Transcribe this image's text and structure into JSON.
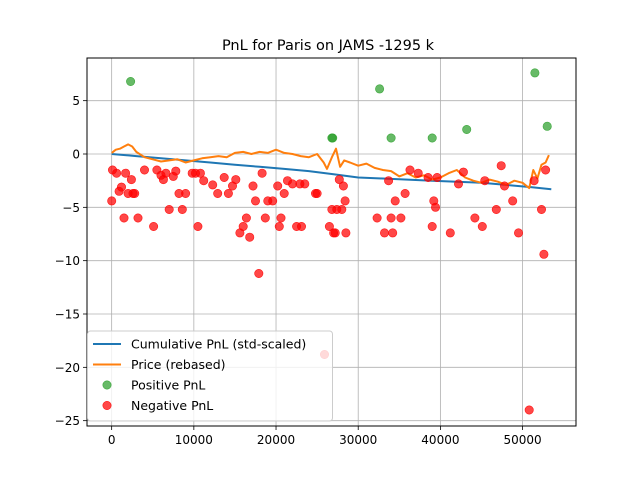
{
  "chart_data": {
    "type": "line+scatter",
    "title": "PnL for Paris on JAMS -1295 k",
    "xlabel": "",
    "ylabel": "",
    "xlim": [
      -3000,
      56500
    ],
    "ylim": [
      -25.5,
      9
    ],
    "xticks": [
      0,
      10000,
      20000,
      30000,
      40000,
      50000
    ],
    "xtick_labels": [
      "0",
      "10000",
      "20000",
      "30000",
      "40000",
      "50000"
    ],
    "yticks": [
      5,
      0,
      -5,
      -10,
      -15,
      -20,
      -25
    ],
    "ytick_labels": [
      "5",
      "0",
      "−5",
      "−10",
      "−15",
      "−20",
      "−25"
    ],
    "grid": true,
    "legend_position": "lower-left",
    "legend": [
      {
        "label": "Cumulative PnL (std-scaled)",
        "kind": "line",
        "color": "#1f77b4"
      },
      {
        "label": "Price (rebased)",
        "kind": "line",
        "color": "#ff7f0e"
      },
      {
        "label": "Positive PnL",
        "kind": "marker",
        "color": "#2ca02c"
      },
      {
        "label": "Negative PnL",
        "kind": "marker",
        "color": "#ff0000"
      }
    ],
    "series": [
      {
        "name": "Cumulative PnL (std-scaled)",
        "kind": "line",
        "color": "#1f77b4",
        "x": [
          0,
          3000,
          6000,
          9000,
          12000,
          15000,
          18000,
          21000,
          24000,
          27000,
          30000,
          33000,
          36000,
          39000,
          42000,
          45000,
          48000,
          51000,
          53500
        ],
        "y": [
          0,
          -0.2,
          -0.4,
          -0.6,
          -0.8,
          -1.0,
          -1.2,
          -1.4,
          -1.6,
          -1.9,
          -2.2,
          -2.3,
          -2.4,
          -2.5,
          -2.6,
          -2.7,
          -2.9,
          -3.1,
          -3.3
        ]
      },
      {
        "name": "Price (rebased)",
        "kind": "line",
        "color": "#ff7f0e",
        "x": [
          0,
          500,
          1000,
          1500,
          2000,
          2500,
          3000,
          4000,
          5000,
          6000,
          7000,
          8000,
          9000,
          10000,
          11000,
          12000,
          13000,
          14000,
          15000,
          16000,
          17000,
          18000,
          19000,
          20000,
          21000,
          22000,
          23000,
          24000,
          25000,
          25800,
          26200,
          26800,
          27300,
          27800,
          28300,
          29000,
          30000,
          31000,
          32000,
          33000,
          34000,
          35000,
          36000,
          37000,
          38000,
          39000,
          40000,
          41000,
          42000,
          43000,
          44000,
          45000,
          46000,
          47000,
          48000,
          49000,
          50000,
          50800,
          51300,
          51800,
          52300,
          52800,
          53200
        ],
        "y": [
          0.1,
          0.4,
          0.5,
          0.7,
          0.9,
          0.7,
          0.2,
          -0.3,
          -0.5,
          -0.7,
          -0.6,
          -0.5,
          -0.8,
          -0.6,
          -0.4,
          -0.3,
          -0.2,
          -0.3,
          0.1,
          0.2,
          0.0,
          0.2,
          0.1,
          0.4,
          0.1,
          0.0,
          -0.2,
          -0.3,
          0.0,
          -0.8,
          -1.4,
          -0.3,
          0.5,
          -1.2,
          -0.6,
          -0.8,
          -1.1,
          -0.9,
          -1.3,
          -1.5,
          -1.6,
          -2.1,
          -1.8,
          -2.2,
          -2.0,
          -2.4,
          -2.2,
          -1.8,
          -1.5,
          -2.2,
          -2.5,
          -2.7,
          -2.4,
          -2.6,
          -2.9,
          -2.5,
          -2.7,
          -3.2,
          -1.5,
          -2.3,
          -1.0,
          -0.8,
          -0.1
        ]
      },
      {
        "name": "Positive PnL",
        "kind": "scatter",
        "color": "#2ca02c",
        "x": [
          2300,
          26800,
          26900,
          32600,
          34000,
          39000,
          43200,
          51500,
          53000
        ],
        "y": [
          6.8,
          1.5,
          1.5,
          6.1,
          1.5,
          1.5,
          2.3,
          7.6,
          2.6
        ]
      },
      {
        "name": "Negative PnL",
        "kind": "scatter",
        "color": "#ff0000",
        "x": [
          0,
          100,
          600,
          900,
          1200,
          1500,
          1700,
          2000,
          2400,
          2600,
          2800,
          3200,
          4000,
          5100,
          5500,
          6000,
          6300,
          6600,
          7000,
          7500,
          7800,
          8200,
          8600,
          9000,
          9800,
          10200,
          10500,
          10800,
          11200,
          12300,
          12900,
          13700,
          14200,
          14700,
          15100,
          15600,
          16000,
          16400,
          16800,
          17200,
          17500,
          17900,
          18300,
          18700,
          19000,
          19600,
          20200,
          20400,
          20600,
          21000,
          21400,
          22000,
          22500,
          22900,
          23100,
          23500,
          24800,
          25000,
          25900,
          26500,
          26800,
          27000,
          27200,
          27400,
          27700,
          28000,
          28200,
          28400,
          28500,
          32300,
          33200,
          33700,
          34000,
          34200,
          34500,
          35200,
          35700,
          36300,
          37300,
          38500,
          39000,
          39200,
          39400,
          39600,
          41200,
          42200,
          42800,
          44200,
          45100,
          45400,
          46800,
          47400,
          47800,
          48800,
          49500,
          50800,
          51400,
          52300,
          52600,
          52800
        ],
        "y": [
          -4.4,
          -1.5,
          -1.8,
          -3.5,
          -3.1,
          -6.0,
          -1.8,
          -3.7,
          -2.4,
          -3.7,
          -3.7,
          -6.0,
          -1.5,
          -6.8,
          -1.5,
          -2.0,
          -2.4,
          -1.8,
          -5.2,
          -2.1,
          -1.6,
          -3.7,
          -5.2,
          -3.7,
          -1.8,
          -1.8,
          -6.8,
          -1.8,
          -2.5,
          -2.9,
          -3.7,
          -2.2,
          -3.7,
          -3.0,
          -2.4,
          -7.4,
          -6.8,
          -6.0,
          -7.8,
          -3.0,
          -4.4,
          -11.2,
          -1.8,
          -6.0,
          -4.4,
          -4.4,
          -3.0,
          -6.8,
          -6.0,
          -3.7,
          -2.5,
          -2.8,
          -6.8,
          -2.8,
          -6.8,
          -2.8,
          -3.7,
          -3.7,
          -18.8,
          -6.8,
          -5.2,
          -7.4,
          -7.4,
          -5.2,
          -2.4,
          -5.2,
          -3.0,
          -4.4,
          -7.4,
          -6.0,
          -7.4,
          -2.5,
          -6.0,
          -7.4,
          -4.4,
          -6.0,
          -3.7,
          -1.5,
          -1.8,
          -2.2,
          -6.8,
          -4.4,
          -5.0,
          -2.2,
          -7.4,
          -2.8,
          -1.7,
          -6.0,
          -6.8,
          -2.5,
          -5.2,
          -1.1,
          -3.0,
          -4.4,
          -7.4,
          -24.0,
          -2.5,
          -5.2,
          -9.4,
          -1.5
        ]
      }
    ]
  }
}
